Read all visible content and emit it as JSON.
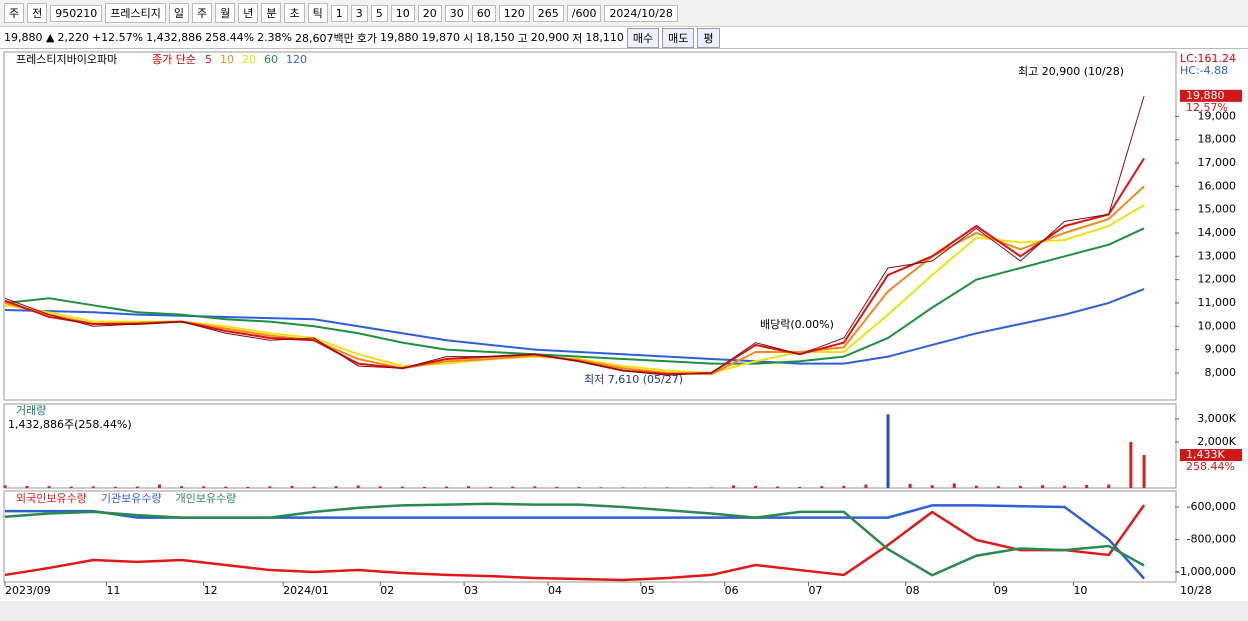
{
  "toolbar": {
    "items": [
      "주",
      "전",
      "950210",
      "프레스티지",
      "일",
      "주",
      "월",
      "년",
      "분",
      "초",
      "틱",
      "1",
      "3",
      "5",
      "10",
      "20",
      "30",
      "60",
      "120",
      "265",
      "/600",
      "2024/10/28"
    ]
  },
  "quote": {
    "items": [
      "19,880 ▲",
      "2,220",
      "+12.57%",
      "1,432,886",
      "258.44%",
      "2.38%",
      "28,607백만",
      "호가",
      "19,880",
      "19,870",
      "시",
      "18,150",
      "고",
      "20,900",
      "저",
      "18,110"
    ],
    "buttons": [
      "매수",
      "매도",
      "평"
    ]
  },
  "price_chart": {
    "type": "line",
    "title": "프레스티지바이오파마",
    "legend_title": "종가 단순",
    "lc": "LC:161.24",
    "hc": "HC:-4.88",
    "high_note": "최고 20,900 (10/28)",
    "low_note": "최저 7,610 (05/27)",
    "event_note": "배당락(0.00%)",
    "last_label": "19,880",
    "change_label": "12.57%",
    "xlim": [
      0,
      265
    ],
    "xticks": [
      {
        "value": 0,
        "label": "2023/09"
      },
      {
        "value": 23,
        "label": "11"
      },
      {
        "value": 45,
        "label": "12"
      },
      {
        "value": 63,
        "label": "2024/01"
      },
      {
        "value": 85,
        "label": "02"
      },
      {
        "value": 104,
        "label": "03"
      },
      {
        "value": 123,
        "label": "04"
      },
      {
        "value": 144,
        "label": "05"
      },
      {
        "value": 163,
        "label": "06"
      },
      {
        "value": 182,
        "label": "07"
      },
      {
        "value": 204,
        "label": "08"
      },
      {
        "value": 224,
        "label": "09"
      },
      {
        "value": 242,
        "label": "10"
      }
    ],
    "end_date": "10/28",
    "ylim": [
      6840,
      21760
    ],
    "yticks": [
      {
        "value": 8000,
        "label": "8,000"
      },
      {
        "value": 9000,
        "label": "9,000"
      },
      {
        "value": 10000,
        "label": "10,000"
      },
      {
        "value": 11000,
        "label": "11,000"
      },
      {
        "value": 12000,
        "label": "12,000"
      },
      {
        "value": 13000,
        "label": "13,000"
      },
      {
        "value": 14000,
        "label": "14,000"
      },
      {
        "value": 15000,
        "label": "15,000"
      },
      {
        "value": 16000,
        "label": "16,000"
      },
      {
        "value": 17000,
        "label": "17,000"
      },
      {
        "value": 18000,
        "label": "18,000"
      },
      {
        "value": 19000,
        "label": "19,000"
      }
    ],
    "x": [
      0,
      10,
      20,
      30,
      40,
      50,
      60,
      70,
      80,
      90,
      100,
      110,
      120,
      130,
      140,
      150,
      160,
      170,
      180,
      190,
      200,
      210,
      220,
      230,
      240,
      250,
      258
    ],
    "close": [
      11200,
      10500,
      10000,
      10100,
      10200,
      9700,
      9400,
      9500,
      8300,
      8200,
      8700,
      8700,
      8800,
      8500,
      8100,
      7900,
      8000,
      9300,
      8800,
      9500,
      12500,
      12800,
      14200,
      12800,
      14500,
      14800,
      19880
    ],
    "close_color": "#7a1010",
    "series": [
      {
        "name": "5",
        "color": "#e01010",
        "values": [
          11100,
          10400,
          10100,
          10100,
          10200,
          9800,
          9500,
          9400,
          8400,
          8200,
          8600,
          8700,
          8800,
          8500,
          8100,
          7950,
          8000,
          9200,
          8800,
          9300,
          12200,
          13000,
          14300,
          13000,
          14300,
          14800,
          17200
        ]
      },
      {
        "name": "10",
        "color": "#f08a1c",
        "values": [
          11000,
          10500,
          10100,
          10150,
          10200,
          9900,
          9600,
          9400,
          8600,
          8200,
          8500,
          8600,
          8750,
          8550,
          8200,
          8000,
          7950,
          8900,
          8900,
          9100,
          11500,
          13000,
          14000,
          13300,
          14000,
          14600,
          16000
        ]
      },
      {
        "name": "20",
        "color": "#f0e010",
        "values": [
          10900,
          10600,
          10200,
          10200,
          10200,
          10000,
          9700,
          9500,
          8800,
          8300,
          8400,
          8600,
          8700,
          8600,
          8300,
          8100,
          8000,
          8500,
          8900,
          8900,
          10500,
          12200,
          13800,
          13600,
          13700,
          14300,
          15200
        ]
      },
      {
        "name": "60",
        "color": "#1e9040",
        "values": [
          11000,
          11200,
          10900,
          10600,
          10500,
          10300,
          10200,
          10000,
          9700,
          9300,
          9000,
          8900,
          8800,
          8700,
          8600,
          8500,
          8400,
          8400,
          8500,
          8700,
          9500,
          10800,
          12000,
          12500,
          13000,
          13500,
          14200
        ]
      },
      {
        "name": "120",
        "color": "#2f5fd8",
        "values": [
          10700,
          10650,
          10600,
          10500,
          10450,
          10400,
          10350,
          10300,
          10000,
          9700,
          9400,
          9200,
          9000,
          8900,
          8800,
          8700,
          8600,
          8500,
          8400,
          8400,
          8700,
          9200,
          9700,
          10100,
          10500,
          11000,
          11600
        ]
      }
    ]
  },
  "volume_chart": {
    "type": "bar",
    "title": "거래량",
    "subtitle": "1,432,886주(258.44%)",
    "last_label": "1,433K",
    "ratio_label": "258.44%",
    "color": "#d42020",
    "ylim": [
      0,
      3650
    ],
    "yticks": [
      {
        "value": 2000,
        "label": "2,000K"
      },
      {
        "value": 3000,
        "label": "3,000K"
      }
    ],
    "x": [
      0,
      5,
      10,
      15,
      20,
      25,
      30,
      35,
      40,
      45,
      50,
      55,
      60,
      65,
      70,
      75,
      80,
      85,
      90,
      95,
      100,
      105,
      110,
      115,
      120,
      125,
      130,
      135,
      140,
      145,
      150,
      155,
      160,
      165,
      170,
      175,
      180,
      185,
      190,
      195,
      200,
      205,
      210,
      215,
      220,
      225,
      230,
      235,
      240,
      245,
      250,
      255,
      258
    ],
    "values": [
      120,
      90,
      80,
      60,
      70,
      50,
      60,
      150,
      80,
      70,
      60,
      50,
      70,
      90,
      60,
      80,
      110,
      70,
      60,
      50,
      60,
      80,
      50,
      60,
      70,
      50,
      40,
      30,
      30,
      20,
      30,
      20,
      25,
      110,
      90,
      60,
      50,
      80,
      90,
      150,
      3200,
      180,
      120,
      200,
      100,
      80,
      90,
      120,
      100,
      130,
      150,
      2000,
      1433
    ]
  },
  "holdings_chart": {
    "type": "line",
    "ylim": [
      -1061500,
      -501500
    ],
    "yticks": [
      {
        "value": -600000,
        "label": "-600,000"
      },
      {
        "value": -800000,
        "label": "-800,000"
      },
      {
        "value": -1000000,
        "label": "-1,000,000"
      }
    ],
    "series": [
      {
        "name": "외국인보유수량",
        "color": "#e01818",
        "values": [
          -1018000,
          -975000,
          -926000,
          -938000,
          -926000,
          -957000,
          -988000,
          -1000000,
          -988000,
          -1006000,
          -1018000,
          -1025000,
          -1037000,
          -1043000,
          -1049000,
          -1037000,
          -1018000,
          -957000,
          -988000,
          -1018000,
          -834000,
          -631000,
          -803000,
          -865000,
          -865000,
          -895000,
          -588000
        ]
      },
      {
        "name": "기관보유수량",
        "color": "#2f5fd8",
        "values": [
          -625000,
          -625000,
          -625000,
          -665000,
          -665000,
          -665000,
          -665000,
          -665000,
          -665000,
          -665000,
          -665000,
          -665000,
          -665000,
          -665000,
          -665000,
          -665000,
          -665000,
          -665000,
          -665000,
          -665000,
          -665000,
          -590000,
          -590000,
          -595000,
          -600000,
          -800000,
          -1040000
        ]
      },
      {
        "name": "개인보유수량",
        "color": "#2a8a50",
        "values": [
          -660000,
          -640000,
          -630000,
          -650000,
          -665000,
          -665000,
          -665000,
          -630000,
          -605000,
          -590000,
          -585000,
          -580000,
          -585000,
          -585000,
          -600000,
          -620000,
          -640000,
          -665000,
          -630000,
          -630000,
          -860000,
          -1020000,
          -900000,
          -855000,
          -865000,
          -840000,
          -960000
        ]
      }
    ]
  }
}
